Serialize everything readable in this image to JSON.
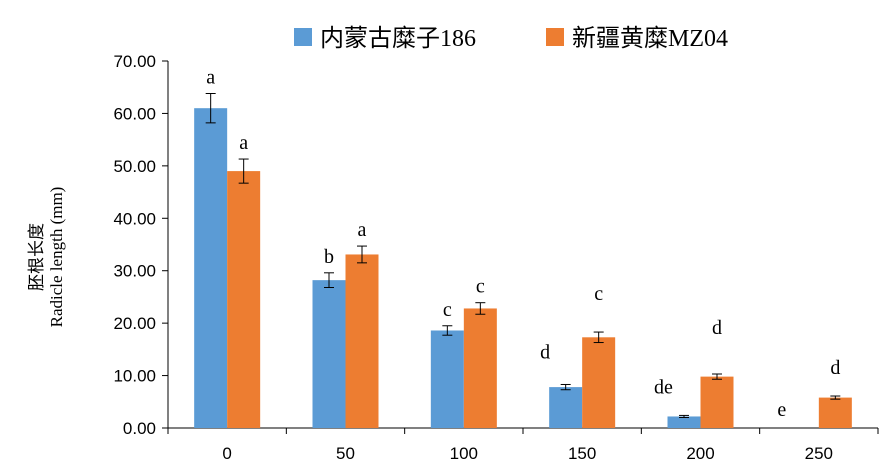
{
  "chart_data": {
    "type": "bar",
    "categories": [
      "0",
      "50",
      "100",
      "150",
      "200",
      "250"
    ],
    "ylabel_zh": "胚根长度",
    "ylabel_en": "Radicle length (mm)",
    "ylim": [
      0,
      70
    ],
    "yticks": [
      "0.00",
      "10.00",
      "20.00",
      "30.00",
      "40.00",
      "50.00",
      "60.00",
      "70.00"
    ],
    "legend_position": "top",
    "grid": false,
    "series": [
      {
        "name": "内蒙古糜子186",
        "color": "#5B9BD5",
        "values": [
          61.0,
          28.2,
          18.6,
          7.8,
          2.2,
          0
        ],
        "errors": [
          2.8,
          1.4,
          0.9,
          0.5,
          0.2,
          0
        ],
        "labels": [
          "a",
          "b",
          "c",
          "d",
          "de",
          "e"
        ]
      },
      {
        "name": "新疆黄糜MZ04",
        "color": "#ED7D31",
        "values": [
          49.0,
          33.1,
          22.8,
          17.3,
          9.8,
          5.8
        ],
        "errors": [
          2.3,
          1.6,
          1.1,
          1.0,
          0.5,
          0.3
        ],
        "labels": [
          "a",
          "a",
          "c",
          "c",
          "d",
          "d"
        ]
      }
    ]
  }
}
